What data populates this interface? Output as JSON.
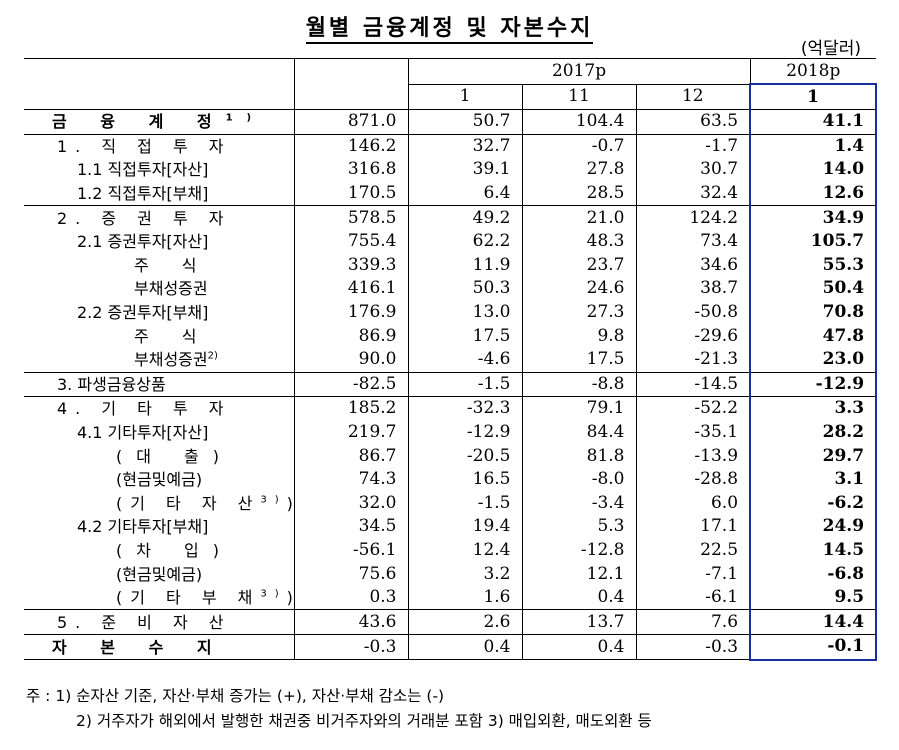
{
  "title": "월별 금융계정 및 자본수지",
  "unit": "(억달러)",
  "header": {
    "year2017": "2017p",
    "year2018": "2018p",
    "months": [
      "1",
      "11",
      "12",
      "1"
    ]
  },
  "rows": [
    {
      "label": "금 융 계 정",
      "sup": "1)",
      "values": [
        "871.0",
        "50.7",
        "104.4",
        "63.5",
        "41.1"
      ]
    },
    {
      "label": "1. 직 접 투 자",
      "values": [
        "146.2",
        "32.7",
        "-0.7",
        "-1.7",
        "1.4"
      ]
    },
    {
      "label": "1.1 직접투자[자산]",
      "values": [
        "316.8",
        "39.1",
        "27.8",
        "30.7",
        "14.0"
      ]
    },
    {
      "label": "1.2 직접투자[부채]",
      "values": [
        "170.5",
        "6.4",
        "28.5",
        "32.4",
        "12.6"
      ]
    },
    {
      "label": "2. 증 권 투 자",
      "values": [
        "578.5",
        "49.2",
        "21.0",
        "124.2",
        "34.9"
      ]
    },
    {
      "label": "2.1 증권투자[자산]",
      "values": [
        "755.4",
        "62.2",
        "48.3",
        "73.4",
        "105.7"
      ]
    },
    {
      "label": "주 식",
      "values": [
        "339.3",
        "11.9",
        "23.7",
        "34.6",
        "55.3"
      ]
    },
    {
      "label": "부채성증권",
      "values": [
        "416.1",
        "50.3",
        "24.6",
        "38.7",
        "50.4"
      ]
    },
    {
      "label": "2.2 증권투자[부채]",
      "values": [
        "176.9",
        "13.0",
        "27.3",
        "-50.8",
        "70.8"
      ]
    },
    {
      "label": "주 식",
      "values": [
        "86.9",
        "17.5",
        "9.8",
        "-29.6",
        "47.8"
      ]
    },
    {
      "label": "부채성증권",
      "sup": "2)",
      "values": [
        "90.0",
        "-4.6",
        "17.5",
        "-21.3",
        "23.0"
      ]
    },
    {
      "label": "3. 파생금융상품",
      "values": [
        "-82.5",
        "-1.5",
        "-8.8",
        "-14.5",
        "-12.9"
      ]
    },
    {
      "label": "4. 기 타 투 자",
      "values": [
        "185.2",
        "-32.3",
        "79.1",
        "-52.2",
        "3.3"
      ]
    },
    {
      "label": "4.1 기타투자[자산]",
      "values": [
        "219.7",
        "-12.9",
        "84.4",
        "-35.1",
        "28.2"
      ]
    },
    {
      "label": "(대 출)",
      "values": [
        "86.7",
        "-20.5",
        "81.8",
        "-13.9",
        "29.7"
      ]
    },
    {
      "label": "(현금및예금)",
      "values": [
        "74.3",
        "16.5",
        "-8.0",
        "-28.8",
        "3.1"
      ]
    },
    {
      "label": "(기 타 자 산",
      "sup": "3)",
      "tail": ")",
      "values": [
        "32.0",
        "-1.5",
        "-3.4",
        "6.0",
        "-6.2"
      ]
    },
    {
      "label": "4.2 기타투자[부채]",
      "values": [
        "34.5",
        "19.4",
        "5.3",
        "17.1",
        "24.9"
      ]
    },
    {
      "label": "(차 입)",
      "values": [
        "-56.1",
        "12.4",
        "-12.8",
        "22.5",
        "14.5"
      ]
    },
    {
      "label": "(현금및예금)",
      "values": [
        "75.6",
        "3.2",
        "12.1",
        "-7.1",
        "-6.8"
      ]
    },
    {
      "label": "(기 타 부 채",
      "sup": "3)",
      "tail": ")",
      "values": [
        "0.3",
        "1.6",
        "0.4",
        "-6.1",
        "9.5"
      ]
    },
    {
      "label": "5. 준 비 자 산",
      "values": [
        "43.6",
        "2.6",
        "13.7",
        "7.6",
        "14.4"
      ]
    },
    {
      "label": "자 본 수 지",
      "values": [
        "-0.3",
        "0.4",
        "0.4",
        "-0.3",
        "-0.1"
      ]
    }
  ],
  "notes": {
    "line1": "주 : 1) 순자산 기준, 자산·부채 증가는 (+), 자산·부채 감소는 (-)",
    "line2": "2) 거주자가 해외에서 발행한 채권중 비거주자와의 거래분 포함  3) 매입외환, 매도외환 등"
  },
  "colors": {
    "highlight_border": "#1a2ea0"
  }
}
